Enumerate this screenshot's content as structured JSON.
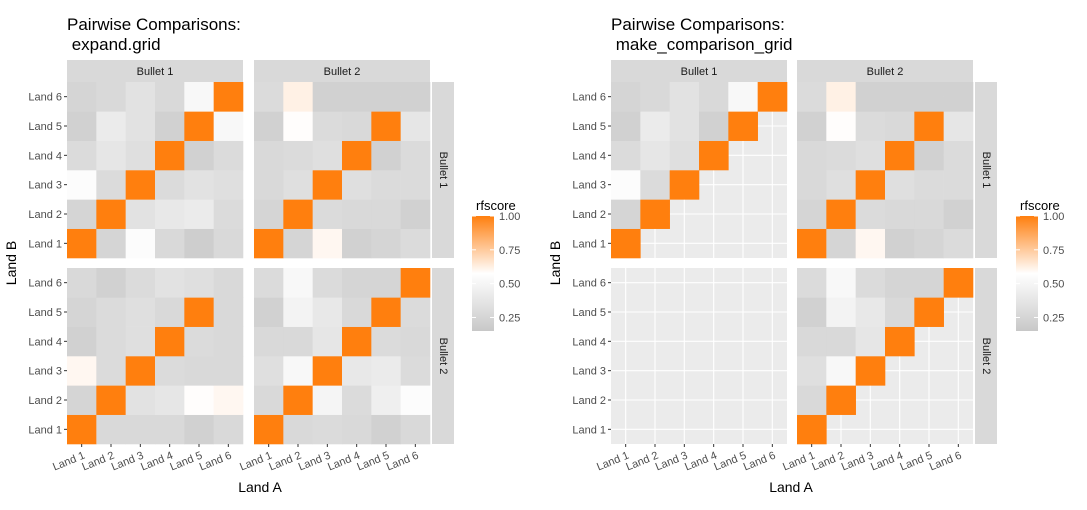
{
  "chart_data": [
    {
      "type": "heatmap",
      "title": "Pairwise Comparisons:\n expand.grid",
      "xlabel": "Land A",
      "ylabel": "Land B",
      "x_categories": [
        "Land 1",
        "Land 2",
        "Land 3",
        "Land 4",
        "Land 5",
        "Land 6"
      ],
      "y_categories": [
        "Land 1",
        "Land 2",
        "Land 3",
        "Land 4",
        "Land 5",
        "Land 6"
      ],
      "facet_cols": [
        "Bullet 1",
        "Bullet 2"
      ],
      "facet_rows": [
        "Bullet 1",
        "Bullet 2"
      ],
      "panels": [
        {
          "col": "Bullet 1",
          "row": "Bullet 1",
          "values": [
            [
              1.0,
              0.25,
              0.55,
              0.28,
              0.2,
              0.28
            ],
            [
              0.25,
              1.0,
              0.35,
              0.4,
              0.42,
              0.3
            ],
            [
              0.55,
              0.3,
              1.0,
              0.3,
              0.35,
              0.33
            ],
            [
              0.3,
              0.38,
              0.33,
              1.0,
              0.22,
              0.3
            ],
            [
              0.22,
              0.42,
              0.35,
              0.22,
              1.0,
              0.52
            ],
            [
              0.25,
              0.28,
              0.35,
              0.28,
              0.52,
              1.0
            ]
          ]
        },
        {
          "col": "Bullet 2",
          "row": "Bullet 1",
          "values": [
            [
              1.0,
              0.25,
              0.6,
              0.22,
              0.25,
              0.3
            ],
            [
              0.25,
              1.0,
              0.3,
              0.28,
              0.28,
              0.22
            ],
            [
              0.28,
              0.33,
              1.0,
              0.33,
              0.3,
              0.3
            ],
            [
              0.28,
              0.3,
              0.33,
              1.0,
              0.22,
              0.3
            ],
            [
              0.22,
              0.58,
              0.3,
              0.28,
              1.0,
              0.38
            ],
            [
              0.3,
              0.62,
              0.22,
              0.22,
              0.22,
              0.22
            ]
          ]
        },
        {
          "col": "Bullet 1",
          "row": "Bullet 2",
          "values": [
            [
              1.0,
              0.28,
              0.28,
              0.28,
              0.22,
              0.28
            ],
            [
              0.25,
              1.0,
              0.35,
              0.38,
              0.58,
              0.6
            ],
            [
              0.6,
              0.3,
              1.0,
              0.3,
              0.28,
              0.28
            ],
            [
              0.22,
              0.3,
              0.33,
              1.0,
              0.3,
              0.28
            ],
            [
              0.25,
              0.3,
              0.33,
              0.28,
              1.0,
              0.28
            ],
            [
              0.28,
              0.22,
              0.3,
              0.35,
              0.33,
              0.28
            ]
          ]
        },
        {
          "col": "Bullet 2",
          "row": "Bullet 2",
          "values": [
            [
              1.0,
              0.28,
              0.3,
              0.28,
              0.22,
              0.28
            ],
            [
              0.28,
              1.0,
              0.5,
              0.3,
              0.45,
              0.55
            ],
            [
              0.33,
              0.52,
              1.0,
              0.4,
              0.42,
              0.3
            ],
            [
              0.28,
              0.28,
              0.38,
              1.0,
              0.3,
              0.28
            ],
            [
              0.22,
              0.48,
              0.4,
              0.28,
              1.0,
              0.3
            ],
            [
              0.3,
              0.52,
              0.3,
              0.25,
              0.25,
              1.0
            ]
          ]
        }
      ],
      "legend": {
        "title": "rfscore",
        "breaks": [
          "1.00",
          "0.75",
          "0.50",
          "0.25"
        ],
        "break_values": [
          1.0,
          0.75,
          0.5,
          0.25
        ],
        "range": [
          0.15,
          1.0
        ],
        "position": "right"
      },
      "colors": {
        "low": "#c8c8c8",
        "mid": "#ffffff",
        "high": "#ff7f0e"
      }
    },
    {
      "type": "heatmap",
      "title": "Pairwise Comparisons:\n make_comparison_grid",
      "xlabel": "Land A",
      "ylabel": "Land B",
      "x_categories": [
        "Land 1",
        "Land 2",
        "Land 3",
        "Land 4",
        "Land 5",
        "Land 6"
      ],
      "y_categories": [
        "Land 1",
        "Land 2",
        "Land 3",
        "Land 4",
        "Land 5",
        "Land 6"
      ],
      "facet_cols": [
        "Bullet 1",
        "Bullet 2"
      ],
      "facet_rows": [
        "Bullet 1",
        "Bullet 2"
      ],
      "panels": [
        {
          "col": "Bullet 1",
          "row": "Bullet 1",
          "values": [
            [
              1.0,
              null,
              null,
              null,
              null,
              null
            ],
            [
              0.25,
              1.0,
              null,
              null,
              null,
              null
            ],
            [
              0.55,
              0.3,
              1.0,
              null,
              null,
              null
            ],
            [
              0.3,
              0.38,
              0.33,
              1.0,
              null,
              null
            ],
            [
              0.22,
              0.42,
              0.35,
              0.22,
              1.0,
              null
            ],
            [
              0.25,
              0.28,
              0.35,
              0.28,
              0.52,
              1.0
            ]
          ]
        },
        {
          "col": "Bullet 2",
          "row": "Bullet 1",
          "values": [
            [
              1.0,
              0.25,
              0.6,
              0.22,
              0.25,
              0.3
            ],
            [
              0.25,
              1.0,
              0.3,
              0.28,
              0.28,
              0.22
            ],
            [
              0.28,
              0.33,
              1.0,
              0.33,
              0.3,
              0.3
            ],
            [
              0.28,
              0.3,
              0.33,
              1.0,
              0.22,
              0.3
            ],
            [
              0.22,
              0.58,
              0.3,
              0.28,
              1.0,
              0.38
            ],
            [
              0.3,
              0.62,
              0.22,
              0.22,
              0.22,
              0.22
            ]
          ]
        },
        {
          "col": "Bullet 1",
          "row": "Bullet 2",
          "values": [
            [
              null,
              null,
              null,
              null,
              null,
              null
            ],
            [
              null,
              null,
              null,
              null,
              null,
              null
            ],
            [
              null,
              null,
              null,
              null,
              null,
              null
            ],
            [
              null,
              null,
              null,
              null,
              null,
              null
            ],
            [
              null,
              null,
              null,
              null,
              null,
              null
            ],
            [
              null,
              null,
              null,
              null,
              null,
              null
            ]
          ]
        },
        {
          "col": "Bullet 2",
          "row": "Bullet 2",
          "values": [
            [
              1.0,
              null,
              null,
              null,
              null,
              null
            ],
            [
              0.28,
              1.0,
              null,
              null,
              null,
              null
            ],
            [
              0.33,
              0.52,
              1.0,
              null,
              null,
              null
            ],
            [
              0.28,
              0.28,
              0.38,
              1.0,
              null,
              null
            ],
            [
              0.22,
              0.48,
              0.4,
              0.28,
              1.0,
              null
            ],
            [
              0.3,
              0.52,
              0.3,
              0.25,
              0.25,
              1.0
            ]
          ]
        }
      ],
      "legend": {
        "title": "rfscore",
        "breaks": [
          "1.00",
          "0.75",
          "0.50",
          "0.25"
        ],
        "break_values": [
          1.0,
          0.75,
          0.5,
          0.25
        ],
        "range": [
          0.15,
          1.0
        ],
        "position": "right"
      },
      "colors": {
        "low": "#c8c8c8",
        "mid": "#ffffff",
        "high": "#ff7f0e"
      }
    }
  ]
}
